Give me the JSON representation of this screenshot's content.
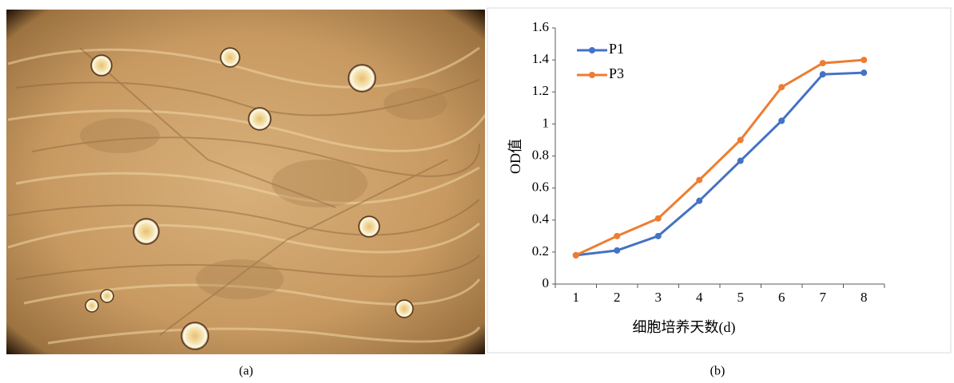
{
  "panels": [
    {
      "caption": "(a)"
    },
    {
      "caption": "(b)"
    }
  ],
  "chart_data": {
    "type": "line",
    "x_label": "细胞培养天数(d)",
    "y_label": "OD值",
    "categories": [
      1,
      2,
      3,
      4,
      5,
      6,
      7,
      8
    ],
    "series": [
      {
        "name": "P1",
        "color": "#4472c4",
        "values": [
          0.18,
          0.21,
          0.3,
          0.52,
          0.77,
          1.02,
          1.31,
          1.32
        ]
      },
      {
        "name": "P3",
        "color": "#ed7d31",
        "values": [
          0.18,
          0.3,
          0.41,
          0.65,
          0.9,
          1.23,
          1.38,
          1.4
        ]
      }
    ],
    "ylim": [
      0,
      1.6
    ],
    "yticks": [
      0,
      0.2,
      0.4,
      0.6,
      0.8,
      1,
      1.2,
      1.4,
      1.6
    ],
    "grid": false,
    "legend": "top-left"
  }
}
